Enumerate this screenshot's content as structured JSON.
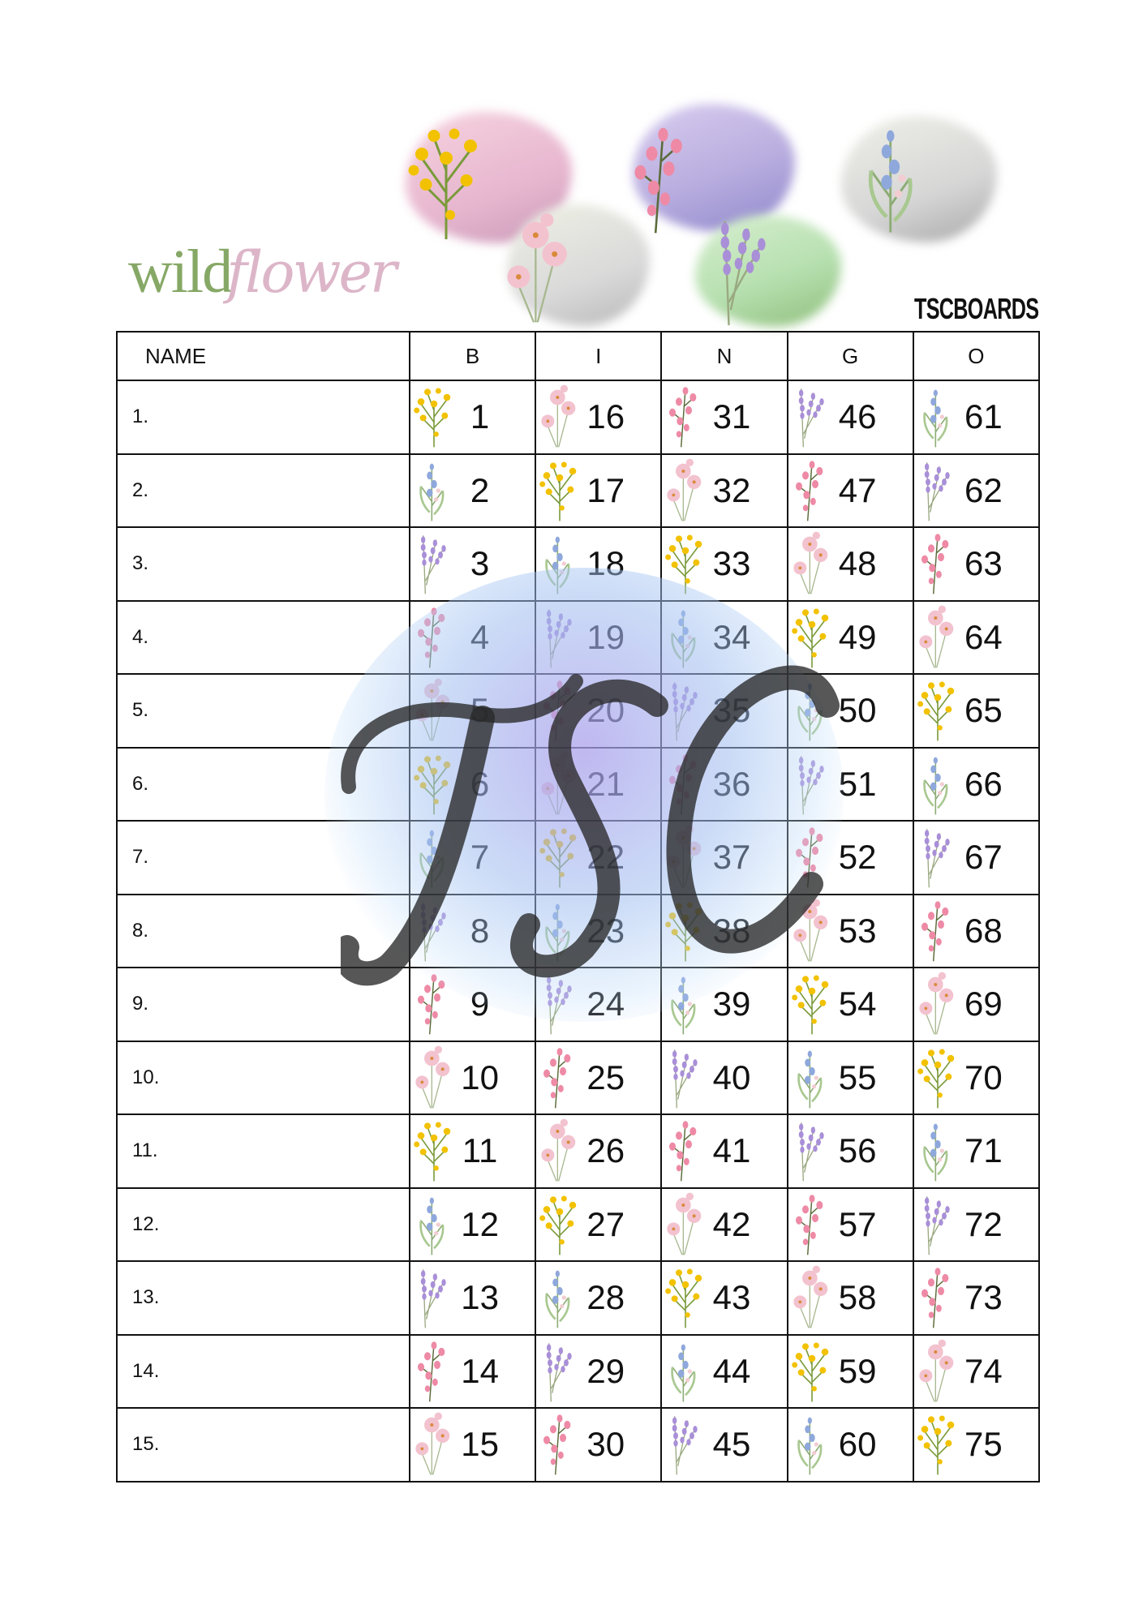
{
  "logo": {
    "word1": "wild",
    "word2": "flower"
  },
  "brand": "TSCBOARDS",
  "watermark": "TSC",
  "colors": {
    "yellow": "#f2c200",
    "pink": "#f0a0b8",
    "lavender": "#a98fd8",
    "bluebell": "#8fa8dc",
    "green": "#86a866"
  },
  "table": {
    "headers": [
      "NAME",
      "B",
      "I",
      "N",
      "G",
      "O"
    ],
    "rows": [
      {
        "label": "1.",
        "cells": [
          {
            "n": "1",
            "icon": "yellow-flower"
          },
          {
            "n": "16",
            "icon": "pink-cosmos"
          },
          {
            "n": "31",
            "icon": "pink-sweetpea"
          },
          {
            "n": "46",
            "icon": "lavender"
          },
          {
            "n": "61",
            "icon": "bluebell"
          }
        ]
      },
      {
        "label": "2.",
        "cells": [
          {
            "n": "2",
            "icon": "bluebell"
          },
          {
            "n": "17",
            "icon": "yellow-flower"
          },
          {
            "n": "32",
            "icon": "pink-cosmos"
          },
          {
            "n": "47",
            "icon": "pink-sweetpea"
          },
          {
            "n": "62",
            "icon": "lavender"
          }
        ]
      },
      {
        "label": "3.",
        "cells": [
          {
            "n": "3",
            "icon": "lavender"
          },
          {
            "n": "18",
            "icon": "bluebell"
          },
          {
            "n": "33",
            "icon": "yellow-flower"
          },
          {
            "n": "48",
            "icon": "pink-cosmos"
          },
          {
            "n": "63",
            "icon": "pink-sweetpea"
          }
        ]
      },
      {
        "label": "4.",
        "cells": [
          {
            "n": "4",
            "icon": "pink-sweetpea"
          },
          {
            "n": "19",
            "icon": "lavender"
          },
          {
            "n": "34",
            "icon": "bluebell"
          },
          {
            "n": "49",
            "icon": "yellow-flower"
          },
          {
            "n": "64",
            "icon": "pink-cosmos"
          }
        ]
      },
      {
        "label": "5.",
        "cells": [
          {
            "n": "5",
            "icon": "pink-cosmos"
          },
          {
            "n": "20",
            "icon": "pink-sweetpea"
          },
          {
            "n": "35",
            "icon": "lavender"
          },
          {
            "n": "50",
            "icon": "bluebell"
          },
          {
            "n": "65",
            "icon": "yellow-flower"
          }
        ]
      },
      {
        "label": "6.",
        "cells": [
          {
            "n": "6",
            "icon": "yellow-flower"
          },
          {
            "n": "21",
            "icon": "pink-cosmos"
          },
          {
            "n": "36",
            "icon": "pink-sweetpea"
          },
          {
            "n": "51",
            "icon": "lavender"
          },
          {
            "n": "66",
            "icon": "bluebell"
          }
        ]
      },
      {
        "label": "7.",
        "cells": [
          {
            "n": "7",
            "icon": "bluebell"
          },
          {
            "n": "22",
            "icon": "yellow-flower"
          },
          {
            "n": "37",
            "icon": "pink-cosmos"
          },
          {
            "n": "52",
            "icon": "pink-sweetpea"
          },
          {
            "n": "67",
            "icon": "lavender"
          }
        ]
      },
      {
        "label": "8.",
        "cells": [
          {
            "n": "8",
            "icon": "lavender"
          },
          {
            "n": "23",
            "icon": "bluebell"
          },
          {
            "n": "38",
            "icon": "yellow-flower"
          },
          {
            "n": "53",
            "icon": "pink-cosmos"
          },
          {
            "n": "68",
            "icon": "pink-sweetpea"
          }
        ]
      },
      {
        "label": "9.",
        "cells": [
          {
            "n": "9",
            "icon": "pink-sweetpea"
          },
          {
            "n": "24",
            "icon": "lavender"
          },
          {
            "n": "39",
            "icon": "bluebell"
          },
          {
            "n": "54",
            "icon": "yellow-flower"
          },
          {
            "n": "69",
            "icon": "pink-cosmos"
          }
        ]
      },
      {
        "label": "10.",
        "cells": [
          {
            "n": "10",
            "icon": "pink-cosmos"
          },
          {
            "n": "25",
            "icon": "pink-sweetpea"
          },
          {
            "n": "40",
            "icon": "lavender"
          },
          {
            "n": "55",
            "icon": "bluebell"
          },
          {
            "n": "70",
            "icon": "yellow-flower"
          }
        ]
      },
      {
        "label": "11.",
        "cells": [
          {
            "n": "11",
            "icon": "yellow-flower"
          },
          {
            "n": "26",
            "icon": "pink-cosmos"
          },
          {
            "n": "41",
            "icon": "pink-sweetpea"
          },
          {
            "n": "56",
            "icon": "lavender"
          },
          {
            "n": "71",
            "icon": "bluebell"
          }
        ]
      },
      {
        "label": "12.",
        "cells": [
          {
            "n": "12",
            "icon": "bluebell"
          },
          {
            "n": "27",
            "icon": "yellow-flower"
          },
          {
            "n": "42",
            "icon": "pink-cosmos"
          },
          {
            "n": "57",
            "icon": "pink-sweetpea"
          },
          {
            "n": "72",
            "icon": "lavender"
          }
        ]
      },
      {
        "label": "13.",
        "cells": [
          {
            "n": "13",
            "icon": "lavender"
          },
          {
            "n": "28",
            "icon": "bluebell"
          },
          {
            "n": "43",
            "icon": "yellow-flower"
          },
          {
            "n": "58",
            "icon": "pink-cosmos"
          },
          {
            "n": "73",
            "icon": "pink-sweetpea"
          }
        ]
      },
      {
        "label": "14.",
        "cells": [
          {
            "n": "14",
            "icon": "pink-sweetpea"
          },
          {
            "n": "29",
            "icon": "lavender"
          },
          {
            "n": "44",
            "icon": "bluebell"
          },
          {
            "n": "59",
            "icon": "yellow-flower"
          },
          {
            "n": "74",
            "icon": "pink-cosmos"
          }
        ]
      },
      {
        "label": "15.",
        "cells": [
          {
            "n": "15",
            "icon": "pink-cosmos"
          },
          {
            "n": "30",
            "icon": "pink-sweetpea"
          },
          {
            "n": "45",
            "icon": "lavender"
          },
          {
            "n": "60",
            "icon": "bluebell"
          },
          {
            "n": "75",
            "icon": "yellow-flower"
          }
        ]
      }
    ]
  }
}
